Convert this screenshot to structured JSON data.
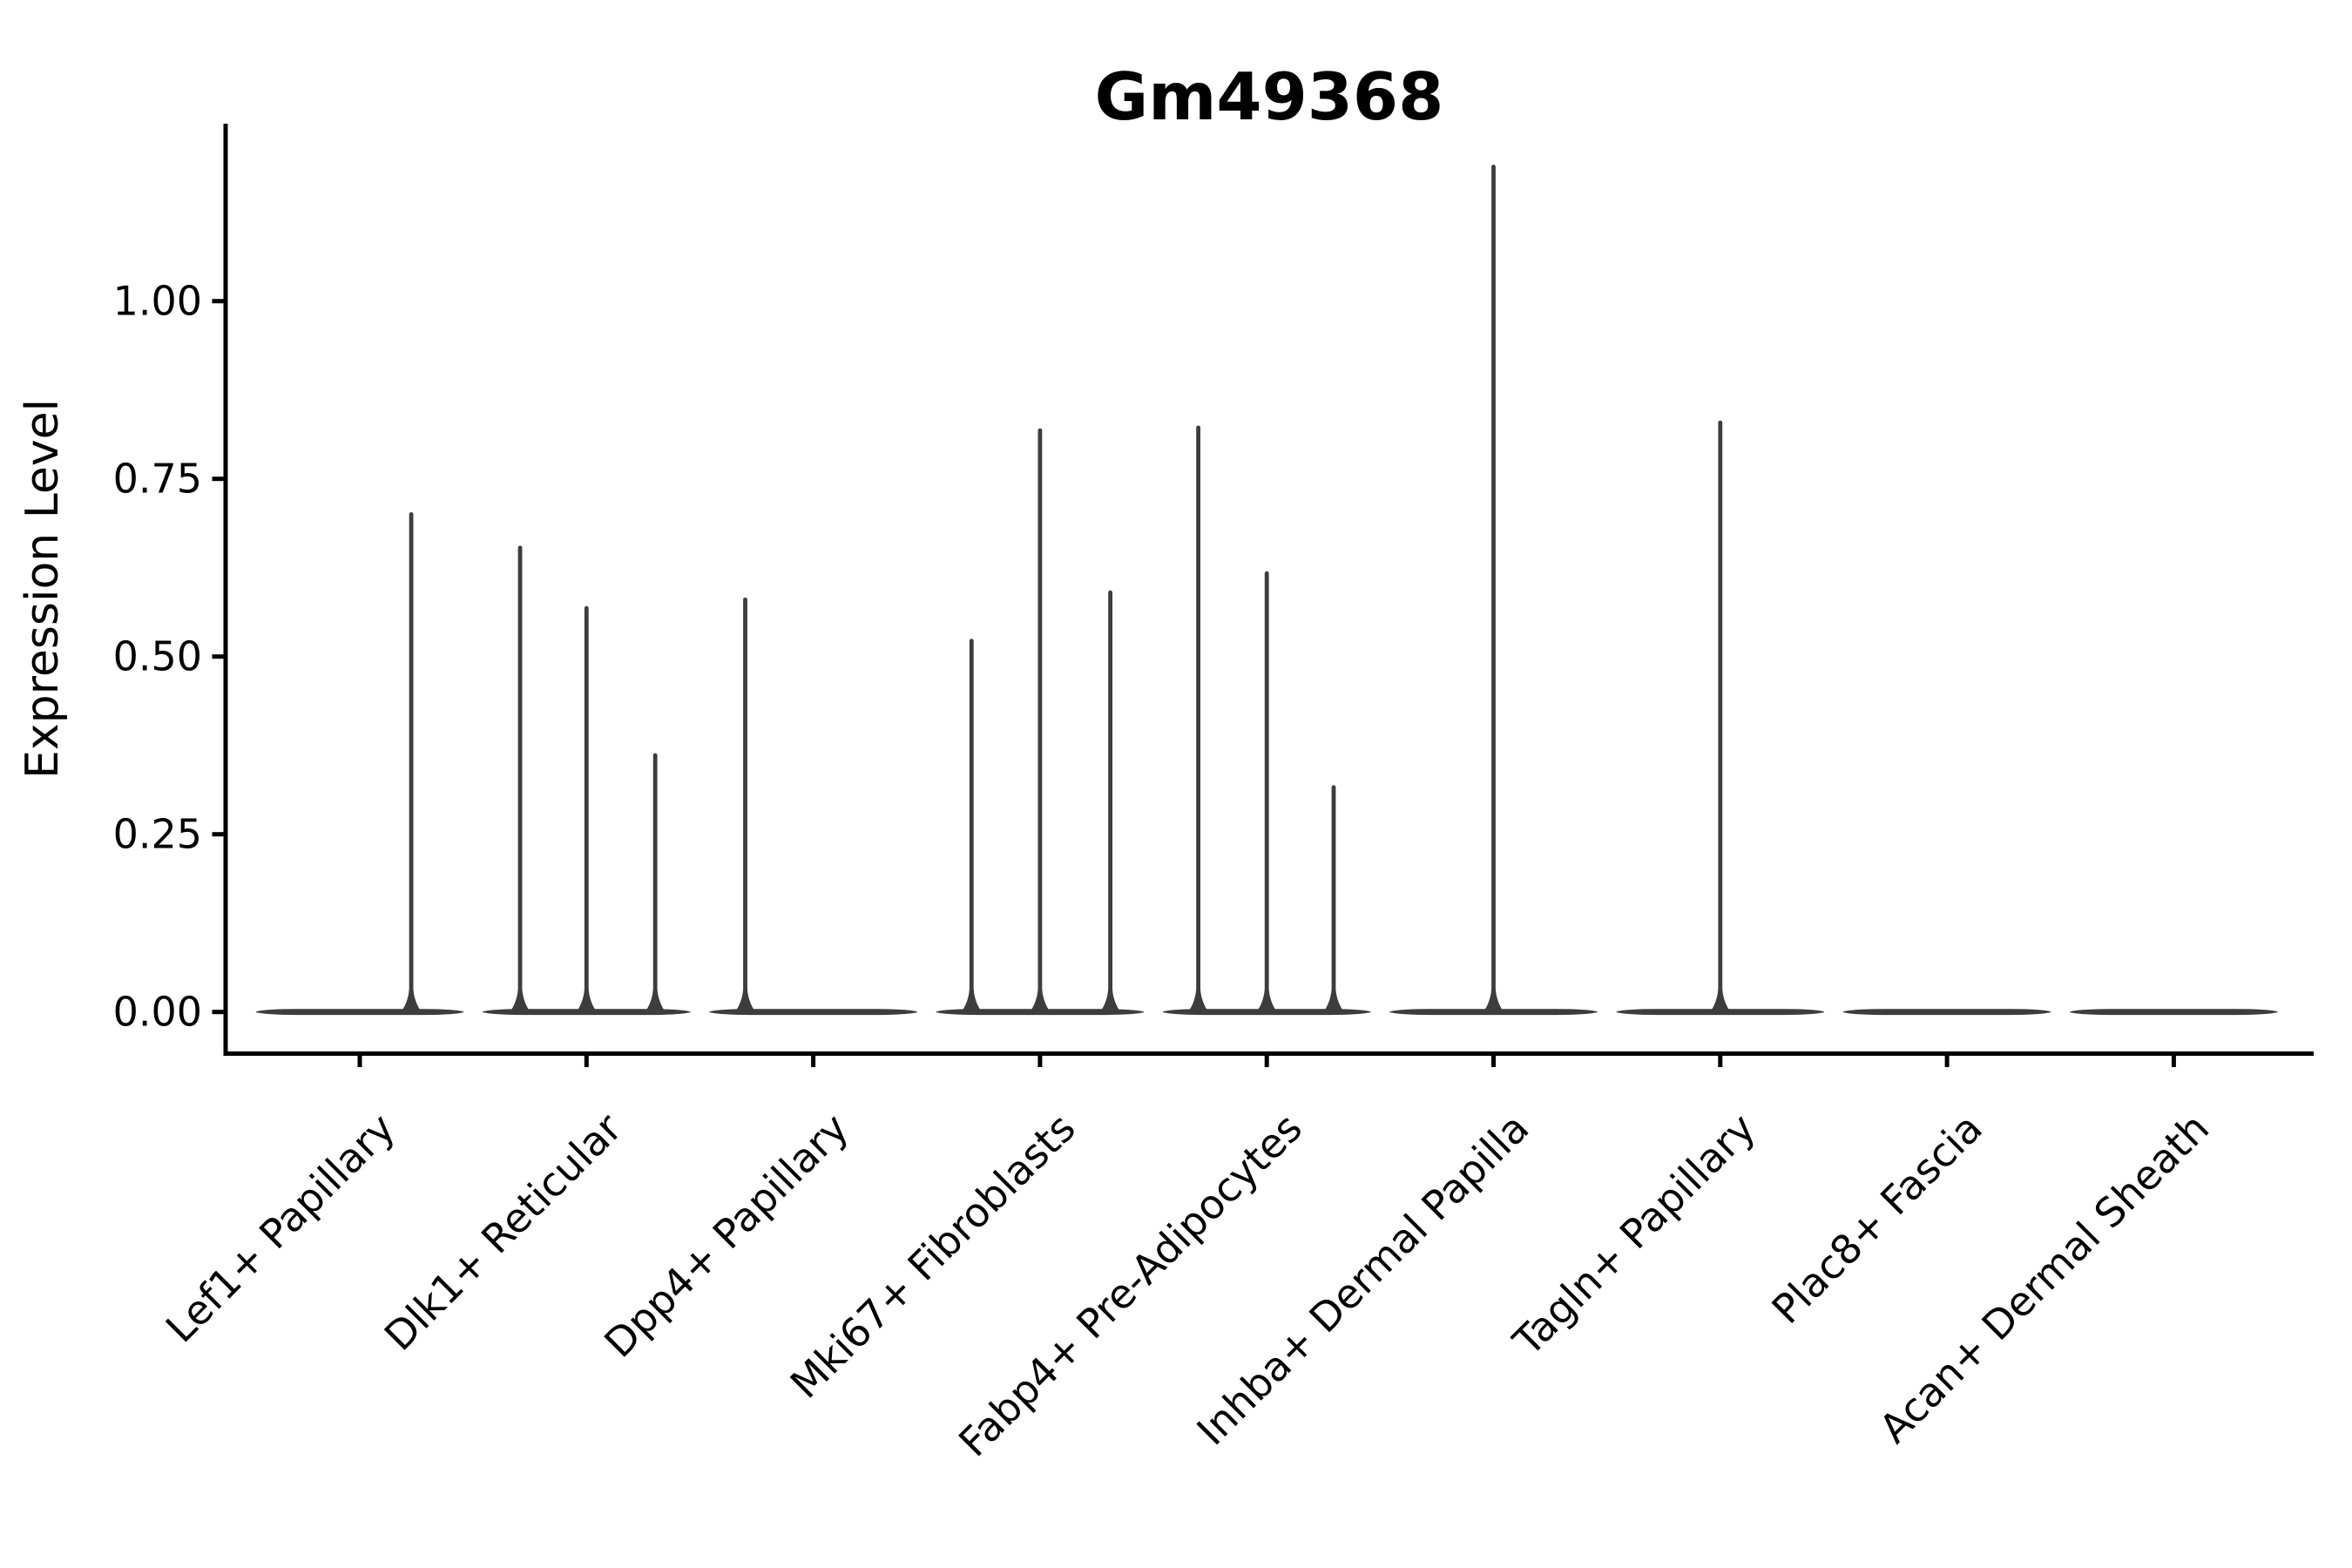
{
  "figure": {
    "background_color": "#ffffff",
    "axis_color": "#000000",
    "violin_color": "#3d3d3d"
  },
  "chart_data": {
    "type": "violin",
    "title": "Gm49368",
    "xlabel": "",
    "ylabel": "Expression Level",
    "ylim": [
      -0.06,
      1.25
    ],
    "yticks": [
      0,
      0.25,
      0.5,
      0.75,
      1.0
    ],
    "ytick_labels": [
      "0.00",
      "0.25",
      "0.50",
      "0.75",
      "1.00"
    ],
    "grid": false,
    "legend": "none",
    "x_tick_label_rotation_deg": 45,
    "violin_width_frac": 0.915,
    "categories": [
      "Lef1+ Papillary",
      "Dlk1+ Reticular",
      "Dpp4+ Papillary",
      "Mki67+ Fibroblasts",
      "Fabp4+ Pre-Adipocytes",
      "Inhba+ Dermal Papilla",
      "Tagln+ Papillary",
      "Plac8+ Fascia",
      "Acan+ Dermal Sheath"
    ],
    "violins": [
      {
        "category": "Lef1+ Papillary",
        "baseline_value": 0,
        "spikes": [
          {
            "x_offset_frac": 0.227,
            "value": 0.703
          }
        ]
      },
      {
        "category": "Dlk1+ Reticular",
        "baseline_value": 0,
        "spikes": [
          {
            "x_offset_frac": -0.293,
            "value": 0.656
          },
          {
            "x_offset_frac": 0.0,
            "value": 0.571
          },
          {
            "x_offset_frac": 0.303,
            "value": 0.364
          }
        ]
      },
      {
        "category": "Dpp4+ Papillary",
        "baseline_value": 0,
        "spikes": [
          {
            "x_offset_frac": -0.3,
            "value": 0.583
          }
        ]
      },
      {
        "category": "Mki67+ Fibroblasts",
        "baseline_value": 0,
        "spikes": [
          {
            "x_offset_frac": -0.302,
            "value": 0.525
          },
          {
            "x_offset_frac": 0.0,
            "value": 0.821
          },
          {
            "x_offset_frac": 0.31,
            "value": 0.593
          }
        ]
      },
      {
        "category": "Fabp4+ Pre-Adipocytes",
        "baseline_value": 0,
        "spikes": [
          {
            "x_offset_frac": -0.302,
            "value": 0.825
          },
          {
            "x_offset_frac": 0.0,
            "value": 0.62
          },
          {
            "x_offset_frac": 0.295,
            "value": 0.319
          }
        ]
      },
      {
        "category": "Inhba+ Dermal Papilla",
        "baseline_value": 0,
        "spikes": [
          {
            "x_offset_frac": 0.0,
            "value": 1.192
          }
        ]
      },
      {
        "category": "Tagln+ Papillary",
        "baseline_value": 0,
        "spikes": [
          {
            "x_offset_frac": 0.0,
            "value": 0.832
          }
        ]
      },
      {
        "category": "Plac8+ Fascia",
        "baseline_value": 0,
        "spikes": []
      },
      {
        "category": "Acan+ Dermal Sheath",
        "baseline_value": 0,
        "spikes": []
      }
    ]
  }
}
